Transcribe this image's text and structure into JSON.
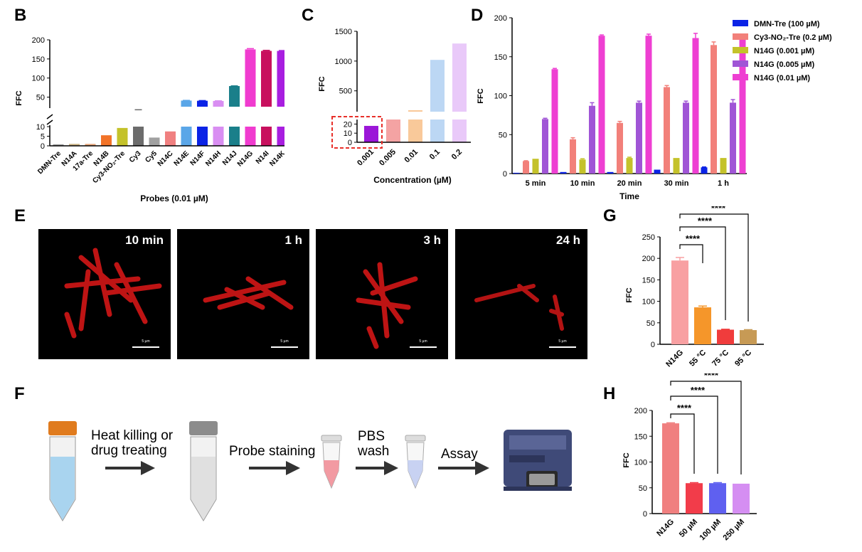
{
  "panels": {
    "B": "B",
    "C": "C",
    "D": "D",
    "E": "E",
    "F": "F",
    "G": "G",
    "H": "H"
  },
  "chart_data": [
    {
      "id": "B",
      "type": "bar",
      "title": "",
      "ylabel": "FFC",
      "xlabel": "Probes (0.01 µM)",
      "y_break": [
        10,
        25
      ],
      "ylim": [
        0,
        200
      ],
      "yticks_low": [
        0,
        5,
        10
      ],
      "yticks_high": [
        50,
        100,
        150,
        200
      ],
      "categories": [
        "DMN-Tre",
        "N14A",
        "17a-Tre",
        "N14B",
        "Cy3-NO2-Tre",
        "Cy3",
        "Cy5",
        "N14C",
        "N14E",
        "N14F",
        "N14H",
        "N14J",
        "N14G",
        "N14I",
        "N14K"
      ],
      "category_display": [
        "DMN-Tre",
        "N14A",
        "17a-Tre",
        "N14B",
        "Cy3-NO₂-Tre",
        "Cy3",
        "Cy5",
        "N14C",
        "N14E",
        "N14F",
        "N14H",
        "N14J",
        "N14G",
        "N14I",
        "N14K"
      ],
      "values": [
        0.8,
        1.0,
        1.0,
        5.5,
        9.3,
        16,
        4.3,
        7.5,
        41,
        40.5,
        40,
        79,
        175,
        171,
        171
      ],
      "errors": [
        0,
        0,
        0,
        0,
        0,
        1,
        0,
        0.6,
        0.5,
        0.5,
        0.5,
        0.5,
        2,
        1.5,
        1
      ],
      "colors": [
        "#9b9b9b",
        "#c9b183",
        "#e6a57a",
        "#f27328",
        "#c4c22a",
        "#6c6c6c",
        "#a0a0a0",
        "#f08080",
        "#5aa6e8",
        "#0b23e6",
        "#d98ef2",
        "#1a7f8a",
        "#f03bcf",
        "#c8105e",
        "#a81ee0"
      ]
    },
    {
      "id": "C",
      "type": "bar",
      "title": "",
      "ylabel": "FFC",
      "xlabel": "Concentration (µM)",
      "y_break": [
        25,
        150
      ],
      "ylim": [
        0,
        1500
      ],
      "yticks_low": [
        0,
        10,
        20
      ],
      "yticks_high": [
        500,
        1000,
        1500
      ],
      "categories": [
        "0.001",
        "0.005",
        "0.01",
        "0.1",
        "0.2"
      ],
      "values": [
        18,
        70,
        175,
        1020,
        1295
      ],
      "colors": [
        "#9b16d8",
        "#f4a3a3",
        "#f9c99a",
        "#bcd7f4",
        "#e9c9f9"
      ],
      "highlight": "0.001"
    },
    {
      "id": "D",
      "type": "bar",
      "title": "",
      "ylabel": "FFC",
      "xlabel": "Time",
      "ylim": [
        0,
        200
      ],
      "yticks": [
        0,
        50,
        100,
        150,
        200
      ],
      "categories": [
        "5 min",
        "10 min",
        "20 min",
        "30 min",
        "1 h"
      ],
      "series": [
        {
          "name": "DMN-Tre (100 µM)",
          "color": "#0b23e6",
          "values": [
            1,
            2,
            2,
            5,
            8
          ],
          "errors": [
            0,
            0,
            0,
            0,
            0.5
          ]
        },
        {
          "name": "Cy3-NO2-Tre (0.2 µM)",
          "name_display": "Cy3-NO₂-Tre (0.2 µM)",
          "color": "#f2807a",
          "values": [
            16,
            44,
            65,
            111,
            165
          ],
          "errors": [
            0.5,
            2,
            2,
            2,
            4
          ]
        },
        {
          "name": "N14G (0.001 µM)",
          "color": "#c4c22a",
          "values": [
            19,
            18,
            20,
            20,
            20
          ],
          "errors": [
            0,
            1,
            1,
            0,
            0
          ]
        },
        {
          "name": "N14G (0.005 µM)",
          "color": "#a055d6",
          "values": [
            70,
            87,
            91,
            91,
            91
          ],
          "errors": [
            1,
            4,
            2,
            2,
            4
          ]
        },
        {
          "name": "N14G (0.01 µM)",
          "color": "#ee3fd2",
          "values": [
            134,
            177,
            177,
            174,
            173
          ],
          "errors": [
            1,
            1,
            2,
            6,
            1
          ]
        }
      ]
    },
    {
      "id": "G",
      "type": "bar",
      "title": "",
      "ylabel": "FFC",
      "ylim": [
        0,
        250
      ],
      "yticks": [
        0,
        50,
        100,
        150,
        200,
        250
      ],
      "categories": [
        "N14G",
        "55 °C",
        "75 °C",
        "95 °C"
      ],
      "values": [
        195,
        86,
        34,
        33
      ],
      "errors": [
        7,
        3,
        1,
        1
      ],
      "colors": [
        "#f8a0a2",
        "#f5962a",
        "#f03c3c",
        "#c79a55"
      ],
      "significance": "****"
    },
    {
      "id": "H",
      "type": "bar",
      "title": "",
      "ylabel": "FFC",
      "ylim": [
        0,
        200
      ],
      "yticks": [
        0,
        50,
        100,
        150,
        200
      ],
      "categories": [
        "N14G",
        "50 µM",
        "100 µM",
        "250 µM"
      ],
      "values": [
        175,
        59,
        59,
        58
      ],
      "errors": [
        1,
        1,
        1,
        0
      ],
      "colors": [
        "#f07f7f",
        "#f23c4a",
        "#5f60f0",
        "#d58ef2"
      ],
      "significance": "****"
    }
  ],
  "microscopy": {
    "timepoints": [
      "10 min",
      "1 h",
      "3 h",
      "24 h"
    ],
    "scale_label": "5 µm"
  },
  "workflow": {
    "step1": "Heat killing or drug treating",
    "step1_line1": "Heat killing or",
    "step1_line2": "drug treating",
    "step2": "Probe staining",
    "step3_line1": "PBS",
    "step3_line2": "wash",
    "step4": "Assay"
  }
}
